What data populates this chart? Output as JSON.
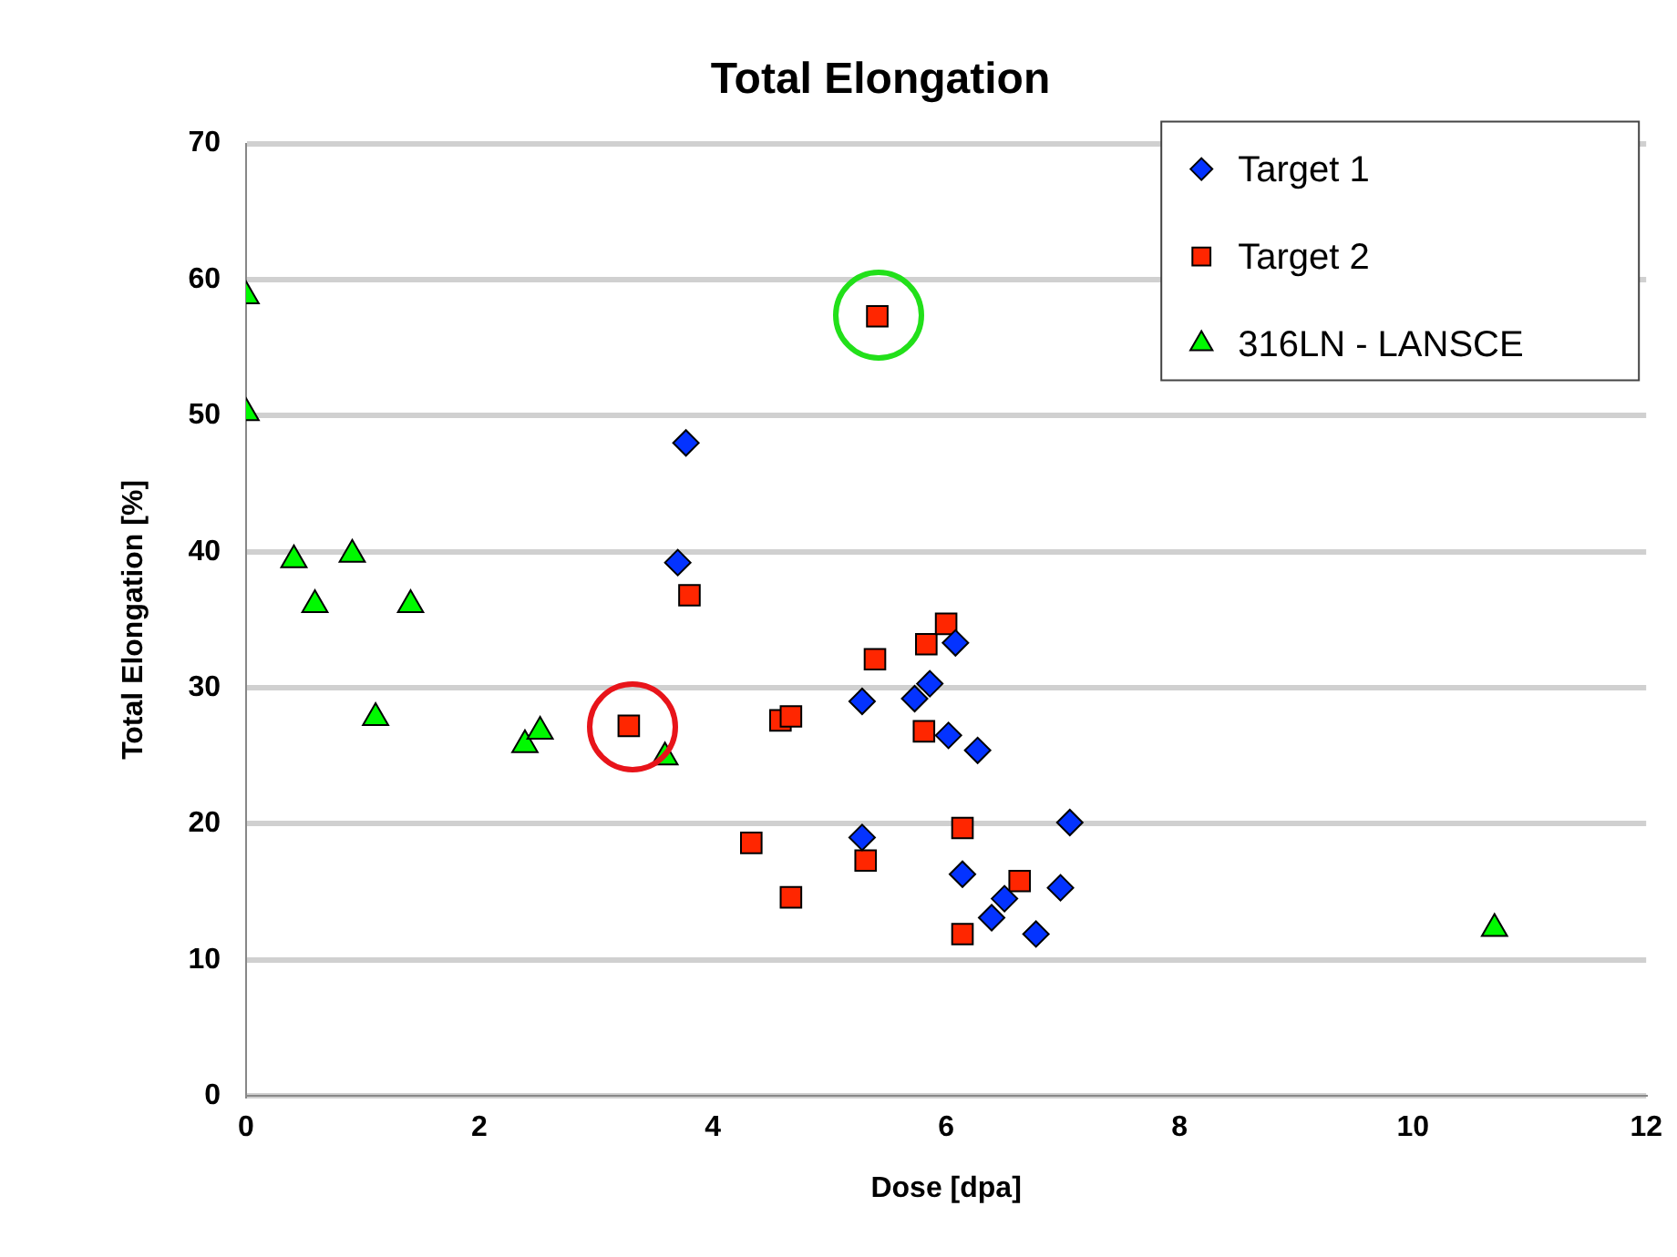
{
  "chart_data": {
    "type": "scatter",
    "title": "Total Elongation",
    "xlabel": "Dose [dpa]",
    "ylabel": "Total Elongation [%]",
    "xlim": [
      0,
      12
    ],
    "xticks": [
      0,
      2,
      4,
      6,
      8,
      10,
      12
    ],
    "ylim": [
      0,
      70
    ],
    "yticks": [
      0,
      10,
      20,
      30,
      40,
      50,
      60,
      70
    ],
    "grid": "y",
    "legend": "top right",
    "series": [
      {
        "name": "Target 1",
        "color": "#0433ff",
        "marker": "diamond",
        "x": [
          3.77,
          3.7,
          5.28,
          5.73,
          5.86,
          6.08,
          6.02,
          6.27,
          5.28,
          6.14,
          7.06,
          6.5,
          6.39,
          6.98,
          6.77
        ],
        "values": [
          48,
          39.2,
          29,
          29.2,
          30.3,
          33.3,
          26.5,
          25.4,
          19,
          16.3,
          20.1,
          14.5,
          13.1,
          15.3,
          11.9
        ]
      },
      {
        "name": "Target 2",
        "color": "#ff2600",
        "marker": "square",
        "x": [
          5.41,
          3.8,
          3.28,
          4.58,
          4.67,
          5.39,
          5.83,
          6.0,
          5.81,
          4.33,
          5.31,
          4.67,
          6.14,
          6.63,
          6.14
        ],
        "values": [
          57.3,
          36.8,
          27.2,
          27.6,
          27.9,
          32.1,
          33.2,
          34.7,
          26.8,
          18.6,
          17.3,
          14.6,
          19.7,
          15.8,
          11.9
        ]
      },
      {
        "name": "316LN - LANSCE",
        "color": "#00f900",
        "marker": "triangle",
        "x": [
          0,
          0,
          0.41,
          0.91,
          0.59,
          1.41,
          1.11,
          2.39,
          2.52,
          3.59,
          10.7
        ],
        "values": [
          58.8,
          50.2,
          39.4,
          39.8,
          36.1,
          36.1,
          27.8,
          25.8,
          26.8,
          24.9,
          12.3
        ]
      }
    ]
  }
}
